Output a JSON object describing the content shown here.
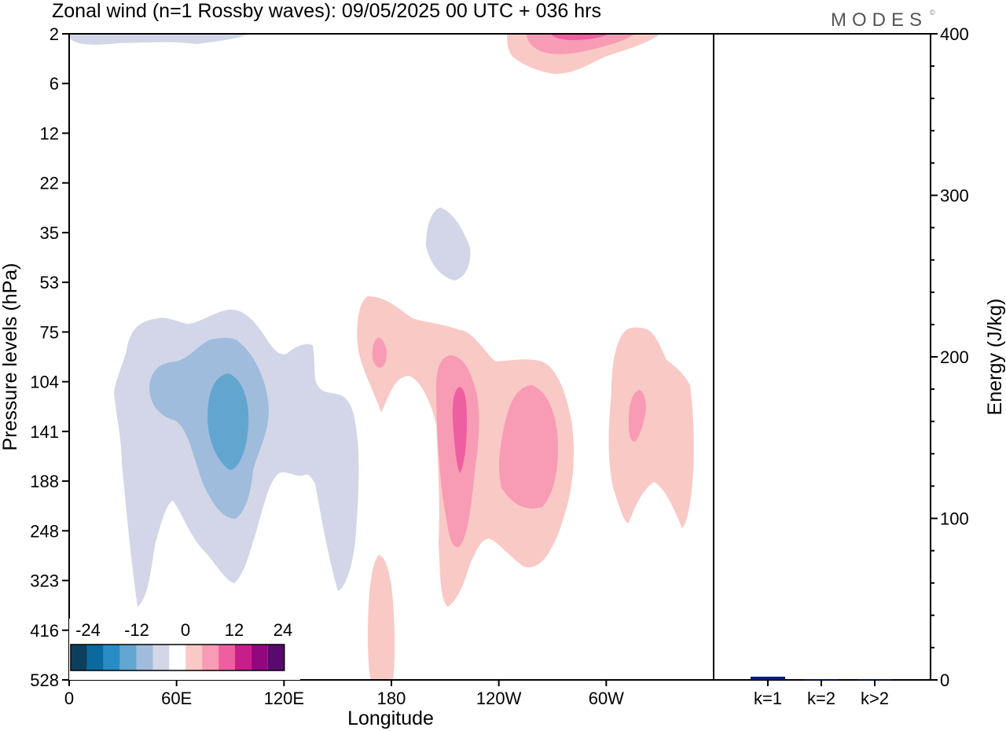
{
  "title": "Zonal wind (n=1 Rossby waves):  09/05/2025  00 UTC  + 036 hrs",
  "brand": "MODES",
  "brand_mark": "©",
  "colors": {
    "neg": [
      "#0d3e5c",
      "#0a6a9e",
      "#2a8cc4",
      "#62a6d0",
      "#a0bcdc",
      "#d3d6e8"
    ],
    "zero": "#ffffff",
    "pos": [
      "#f9c9c5",
      "#f89bb4",
      "#ee5fa1",
      "#c71e8c",
      "#93077e",
      "#5a0a6e"
    ],
    "bar": "#0a1a7a"
  },
  "chart_data": [
    {
      "type": "heatmap",
      "title": "",
      "xlabel": "Longitude",
      "ylabel": "Pressure levels (hPa)",
      "x_ticks": [
        "0",
        "60E",
        "120E",
        "180",
        "120W",
        "60W"
      ],
      "x_tick_lon": [
        0,
        60,
        120,
        180,
        240,
        300
      ],
      "xlim": [
        0,
        360
      ],
      "y_levels": [
        "2",
        "6",
        "12",
        "22",
        "35",
        "53",
        "75",
        "104",
        "141",
        "188",
        "248",
        "323",
        "416",
        "528"
      ],
      "colorbar": {
        "labels": [
          "-24",
          "-12",
          "0",
          "12",
          "24"
        ],
        "contour_interval": 4
      },
      "features": [
        {
          "sign": "neg",
          "level": 1,
          "lon": [
            0,
            100
          ],
          "p": "2",
          "region": "top-left strip"
        },
        {
          "sign": "pos",
          "level": 1,
          "lon": [
            245,
            330
          ],
          "p": "2-6"
        },
        {
          "sign": "pos",
          "level": 2,
          "lon": [
            255,
            315
          ],
          "p": "2"
        },
        {
          "sign": "pos",
          "level": 3,
          "lon": [
            270,
            300
          ],
          "p": "2"
        },
        {
          "sign": "neg",
          "level": 1,
          "lon": [
            198,
            225
          ],
          "p": "26-53"
        },
        {
          "sign": "neg",
          "level": 1,
          "lon": [
            25,
            160
          ],
          "p": "75-416"
        },
        {
          "sign": "neg",
          "level": 2,
          "lon": [
            45,
            110
          ],
          "p": "85-248"
        },
        {
          "sign": "neg",
          "level": 3,
          "lon": [
            78,
            100
          ],
          "p": "112-188"
        },
        {
          "sign": "pos",
          "level": 1,
          "lon": [
            160,
            285
          ],
          "p": "65-416"
        },
        {
          "sign": "pos",
          "level": 2,
          "lon": [
            172,
            176
          ],
          "p": "80-104"
        },
        {
          "sign": "pos",
          "level": 2,
          "lon": [
            205,
            230
          ],
          "p": "100-270"
        },
        {
          "sign": "pos",
          "level": 3,
          "lon": [
            212,
            222
          ],
          "p": "120-188"
        },
        {
          "sign": "pos",
          "level": 2,
          "lon": [
            240,
            275
          ],
          "p": "110-210"
        },
        {
          "sign": "pos",
          "level": 1,
          "lon": [
            305,
            350
          ],
          "p": "75-248"
        },
        {
          "sign": "pos",
          "level": 2,
          "lon": [
            313,
            320
          ],
          "p": "120-141"
        },
        {
          "sign": "pos",
          "level": 1,
          "lon": [
            168,
            182
          ],
          "p": "330-528"
        }
      ]
    },
    {
      "type": "bar",
      "title": "",
      "xlabel": "",
      "ylabel": "Energy (J/kg)",
      "categories": [
        "k=1",
        "k=2",
        "k>2"
      ],
      "values": [
        2.0,
        0.3,
        0.3
      ],
      "ylim": [
        0,
        400
      ],
      "y_ticks": [
        "0",
        "100",
        "200",
        "300",
        "400"
      ]
    }
  ]
}
